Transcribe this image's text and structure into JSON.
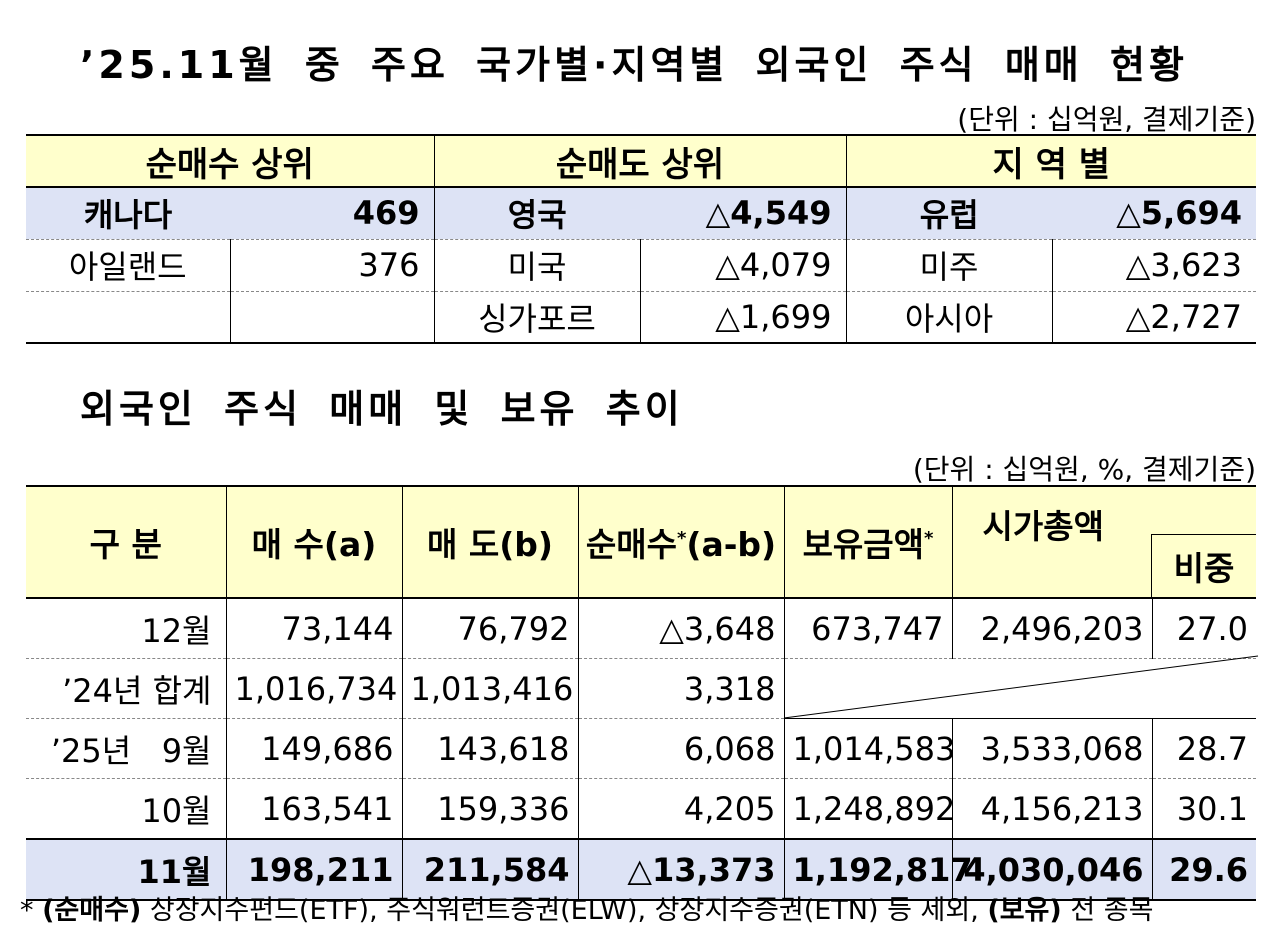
{
  "title1": "’25.11월 중 주요 국가별·지역별 외국인 주식 매매 현황",
  "unit1": "(단위 : 십억원, 결제기준)",
  "table1": {
    "headers": [
      "순매수 상위",
      "순매도 상위",
      "지 역 별"
    ],
    "rows": [
      [
        "캐나다",
        "469",
        "영국",
        "△4,549",
        "유럽",
        "△5,694"
      ],
      [
        "아일랜드",
        "376",
        "미국",
        "△4,079",
        "미주",
        "△3,623"
      ],
      [
        "",
        "",
        "싱가포르",
        "△1,699",
        "아시아",
        "△2,727"
      ]
    ]
  },
  "title2": "외국인 주식 매매 및 보유 추이",
  "unit2": "(단위 : 십억원, %, 결제기준)",
  "table2": {
    "headers": {
      "h1": "구 분",
      "h2": "매 수(a)",
      "h3": "매 도(b)",
      "h4": "순매수",
      "h4_sup": "*",
      "h4_tail": "(a-b)",
      "h5": "보유금액",
      "h5_sup": "*",
      "h6": "시가총액",
      "h7": "비중"
    },
    "rows": [
      [
        "12월",
        "73,144",
        "76,792",
        "△3,648",
        "673,747",
        "2,496,203",
        "27.0"
      ],
      [
        "’24년 합계",
        "1,016,734",
        "1,013,416",
        "3,318"
      ],
      [
        "’25년   9월",
        "149,686",
        "143,618",
        "6,068",
        "1,014,583",
        "3,533,068",
        "28.7"
      ],
      [
        "10월",
        "163,541",
        "159,336",
        "4,205",
        "1,248,892",
        "4,156,213",
        "30.1"
      ],
      [
        "11월",
        "198,211",
        "211,584",
        "△13,373",
        "1,192,817",
        "4,030,046",
        "29.6"
      ]
    ]
  },
  "note": {
    "star": "*",
    "b1": "(순매수)",
    "t1": " 상장지수펀드(ETF), 주식워런트증권(ELW), 상장지수증권(ETN) 등 제외, ",
    "b2": "(보유)",
    "t2": " 전 종목"
  }
}
